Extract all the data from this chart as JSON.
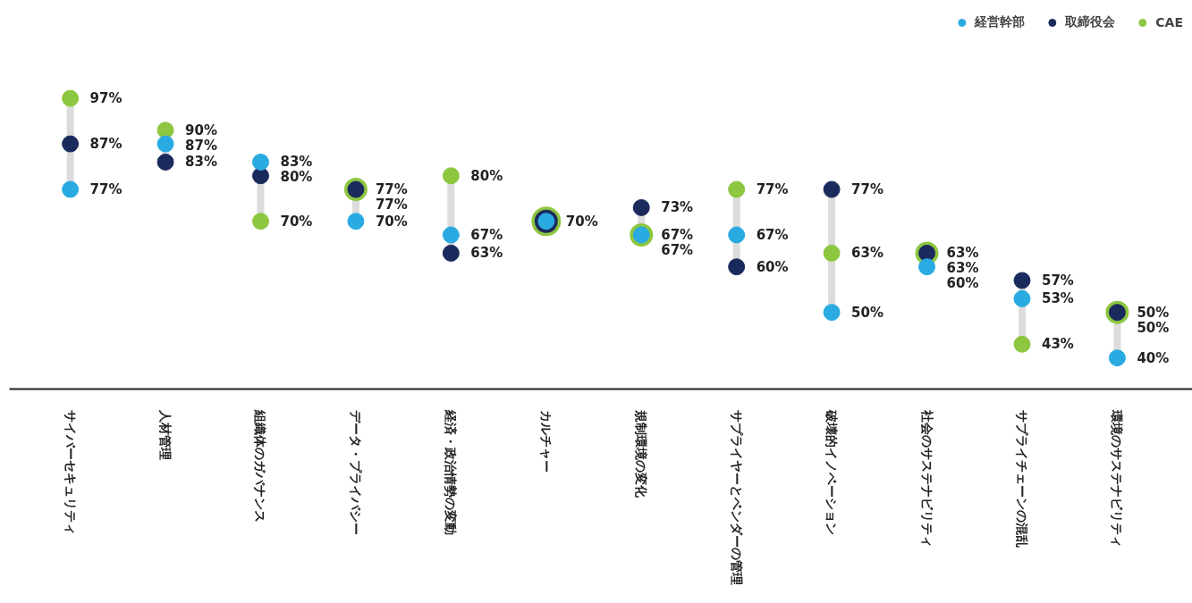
{
  "chart_data": {
    "type": "scatter",
    "categories": [
      "サイバーセキュリティ",
      "人材管理",
      "組織体のガバナンス",
      "データ・プライバシー",
      "経済・政治情勢の変動",
      "カルチャー",
      "規制環境の変化",
      "サプライヤーとベンダーの管理",
      "破壊的イノベーション",
      "社会のサステナビリティ",
      "サプライチェーンの混乱",
      "環境のサステナビリティ"
    ],
    "series": [
      {
        "name": "経営幹部",
        "color": "#29abe2",
        "values": [
          77,
          87,
          83,
          70,
          67,
          70,
          67,
          67,
          50,
          60,
          53,
          40
        ],
        "value_labels": [
          "77%",
          "87%",
          "83%",
          "70%",
          "67%",
          null,
          "67%",
          "67%",
          "50%",
          "60%",
          "53%",
          "40%"
        ]
      },
      {
        "name": "取締役会",
        "color": "#1b2a5c",
        "values": [
          87,
          83,
          80,
          77,
          63,
          70,
          73,
          60,
          77,
          63,
          57,
          50
        ],
        "value_labels": [
          "87%",
          "83%",
          "80%",
          "77%",
          "63%",
          "70%",
          "73%",
          "60%",
          "77%",
          "63%",
          "57%",
          "50%"
        ]
      },
      {
        "name": "CAE",
        "color": "#8dc63f",
        "values": [
          97,
          90,
          70,
          77,
          80,
          70,
          67,
          77,
          63,
          63,
          43,
          50
        ],
        "value_labels": [
          "97%",
          "90%",
          "70%",
          "77%",
          "80%",
          null,
          "67%",
          "77%",
          "63%",
          "63%",
          "43%",
          "50%"
        ]
      }
    ],
    "marker": "circle",
    "legend": "top right",
    "grid": false,
    "tick_labels": "x"
  }
}
